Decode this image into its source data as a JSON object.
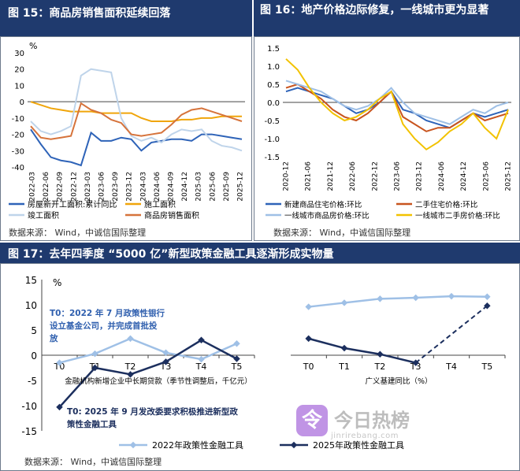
{
  "fig15": {
    "title": "图 15：商品房销售面积延续回落",
    "unit": "%",
    "source": "数据来源： Wind，中诚信国际整理",
    "chart_data": {
      "type": "line",
      "ylim": [
        -40,
        30
      ],
      "yticks": [
        "30",
        "20",
        "10",
        "0",
        "-10",
        "-20",
        "-30",
        "-40"
      ],
      "xticks": [
        "2022-03",
        "2022-06",
        "2022-09",
        "2022-12",
        "2023-03",
        "2023-06",
        "2023-09",
        "2023-12",
        "2024-03",
        "2024-06",
        "2024-09",
        "2024-12",
        "2025-03",
        "2025-06",
        "2025-09",
        "2025-12"
      ],
      "series": [
        {
          "name": "房屋新开工面积:累计同比",
          "color": "#2e63b8",
          "values": [
            -17,
            -26,
            -34,
            -36,
            -37,
            -39,
            -19,
            -24,
            -24,
            -22,
            -23,
            -30,
            -25,
            -24,
            -23,
            -23,
            -24,
            -20,
            -20,
            -21,
            -22,
            -23
          ]
        },
        {
          "name": "施工面积",
          "color": "#f0a50a",
          "values": [
            0,
            -2,
            -4,
            -5,
            -6,
            -6,
            -6,
            -7,
            -7,
            -7,
            -7,
            -10,
            -12,
            -12,
            -12,
            -11,
            -11,
            -10,
            -10,
            -9,
            -9,
            -9
          ]
        },
        {
          "name": "竣工面积",
          "color": "#bfd4ea",
          "values": [
            -12,
            -18,
            -20,
            -18,
            -15,
            16,
            20,
            19,
            18,
            -10,
            -21,
            -24,
            -22,
            -25,
            -20,
            -17,
            -18,
            -17,
            -24,
            -27,
            -28,
            -30
          ]
        },
        {
          "name": "商品房销售面积",
          "color": "#d6733b",
          "values": [
            -15,
            -22,
            -23,
            -22,
            -21,
            -1,
            -5,
            -7,
            -11,
            -13,
            -20,
            -21,
            -20,
            -19,
            -14,
            -8,
            -5,
            -4,
            -6,
            -8,
            -10,
            -12
          ]
        }
      ]
    }
  },
  "fig16": {
    "title": "图 16：地产价格边际修复，一线城市更为显著",
    "source": "数据来源： Wind，中诚信国际整理",
    "chart_data": {
      "type": "line",
      "ylim": [
        -1.5,
        1.5
      ],
      "yticks": [
        "1.5",
        "1.0",
        "0.5",
        "0.0",
        "-0.5",
        "-1.0",
        "-1.5"
      ],
      "xticks": [
        "2020-12",
        "2021-06",
        "2021-12",
        "2022-06",
        "2022-12",
        "2023-06",
        "2023-12",
        "2024-06",
        "2024-12",
        "2025-06",
        "2025-12"
      ],
      "series": [
        {
          "name": "新建商品住宅价格:环比",
          "color": "#2e63b8",
          "values": [
            0.3,
            0.4,
            0.3,
            0.2,
            0.1,
            -0.1,
            -0.3,
            -0.2,
            0.0,
            0.3,
            -0.2,
            -0.3,
            -0.5,
            -0.6,
            -0.7,
            -0.5,
            -0.3,
            -0.4,
            -0.3,
            -0.2
          ]
        },
        {
          "name": "二手住宅价格:环比",
          "color": "#c8541e",
          "values": [
            0.4,
            0.5,
            0.3,
            0.1,
            -0.2,
            -0.4,
            -0.5,
            -0.3,
            0.0,
            0.3,
            -0.4,
            -0.6,
            -0.8,
            -0.7,
            -0.7,
            -0.5,
            -0.3,
            -0.5,
            -0.4,
            -0.3
          ]
        },
        {
          "name": "一线城市商品房价格:环比",
          "color": "#9fc0e6",
          "values": [
            0.6,
            0.5,
            0.4,
            0.3,
            0.1,
            -0.1,
            -0.2,
            -0.1,
            0.1,
            0.4,
            0.0,
            -0.3,
            -0.4,
            -0.5,
            -0.6,
            -0.4,
            -0.2,
            -0.3,
            -0.1,
            0.0
          ]
        },
        {
          "name": "一线城市二手房价格:环比",
          "color": "#f2c200",
          "values": [
            1.2,
            0.9,
            0.4,
            0.0,
            -0.3,
            -0.5,
            -0.4,
            -0.2,
            0.1,
            0.3,
            -0.6,
            -1.0,
            -1.3,
            -1.1,
            -0.8,
            -0.6,
            -0.3,
            -0.7,
            -1.0,
            -0.2
          ]
        }
      ]
    }
  },
  "fig17": {
    "title": "图 17：去年四季度 “5000 亿”新型政策金融工具逐渐形成实物量",
    "unit": "%",
    "source": "数据来源： Wind，中诚信国际整理",
    "annotation1": [
      "T0：2022 年 7 月政策性银行",
      "设立基金公司，并完成首批投",
      "放"
    ],
    "annotation2": [
      "T0:      2025 年 9 月发改委要求积极推进新型政",
      "策性金融工具"
    ],
    "left_xlabel": "金融机构新增企业中长期贷款（季节性调整后，千亿元）",
    "right_xlabel": "广义基建同比（%）",
    "chart_data": {
      "type": "line",
      "ylim": [
        -15,
        15
      ],
      "yticks": [
        "15",
        "10",
        "5",
        "0",
        "-5",
        "-10",
        "-15"
      ],
      "left": {
        "categories": [
          "T0",
          "T1",
          "T2",
          "T3",
          "T4",
          "T5"
        ],
        "series": [
          {
            "name": "2022年政策性金融工具",
            "color": "#9fc0e6",
            "values": [
              -1.5,
              0.3,
              3.3,
              0.5,
              -0.8,
              2.3
            ]
          },
          {
            "name": "2025年政策性金融工具",
            "color": "#1c2f5e",
            "values": [
              -10.3,
              -2.5,
              -3.8,
              -1.3,
              3.0,
              -0.7
            ]
          }
        ]
      },
      "right": {
        "categories": [
          "T0",
          "T1",
          "T2",
          "T3",
          "T4",
          "T5"
        ],
        "series": [
          {
            "name": "2022年政策性金融工具",
            "color": "#9fc0e6",
            "values": [
              9.6,
              10.4,
              11.2,
              11.4,
              11.7,
              11.6
            ]
          },
          {
            "name": "2025年政策性金融工具",
            "color": "#1c2f5e",
            "values": [
              3.3,
              1.4,
              0.2,
              -1.5,
              null,
              9.8
            ]
          }
        ]
      }
    }
  },
  "watermark": {
    "brand": "今日热榜",
    "url": "jinrirebang.com"
  }
}
